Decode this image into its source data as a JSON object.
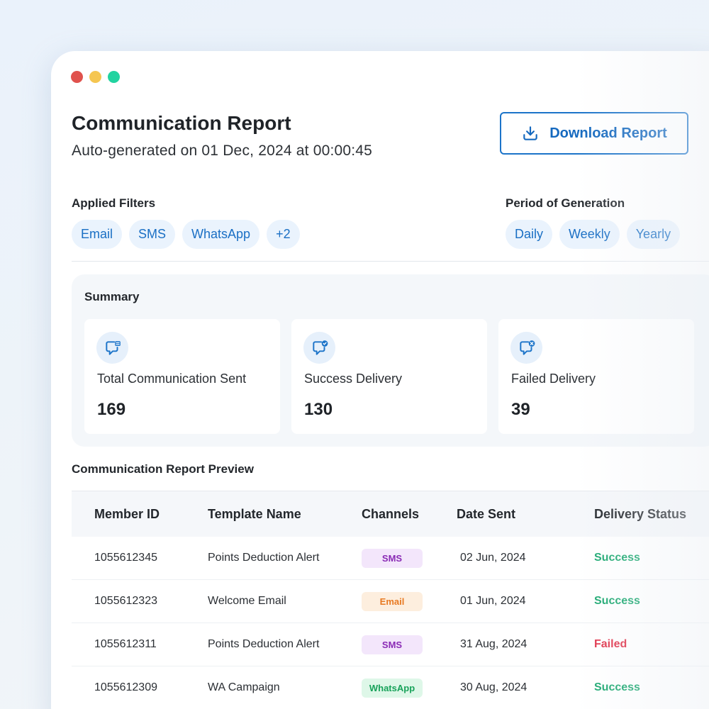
{
  "header": {
    "title": "Communication Report",
    "subtitle": "Auto-generated on 01 Dec, 2024 at 00:00:45",
    "download_label": "Download Report"
  },
  "filters": {
    "label": "Applied Filters",
    "chips": [
      "Email",
      "SMS",
      "WhatsApp",
      "+2"
    ]
  },
  "period": {
    "label": "Period of Generation",
    "chips": [
      "Daily",
      "Weekly",
      "Yearly"
    ]
  },
  "summary": {
    "title": "Summary",
    "cards": [
      {
        "label": "Total Communication Sent",
        "value": "169",
        "icon": "message-list-icon"
      },
      {
        "label": "Success Delivery",
        "value": "130",
        "icon": "message-check-icon"
      },
      {
        "label": "Failed Delivery",
        "value": "39",
        "icon": "message-x-icon"
      }
    ]
  },
  "preview": {
    "title": "Communication Report Preview",
    "columns": [
      "Member ID",
      "Template Name",
      "Channels",
      "Date Sent",
      "Delivery Status"
    ],
    "rows": [
      {
        "member_id": "1055612345",
        "template": "Points Deduction Alert",
        "channel": "SMS",
        "date": "02 Jun, 2024",
        "status": "Success"
      },
      {
        "member_id": "1055612323",
        "template": "Welcome Email",
        "channel": "Email",
        "date": "01 Jun, 2024",
        "status": "Success"
      },
      {
        "member_id": "1055612311",
        "template": "Points Deduction Alert",
        "channel": "SMS",
        "date": "31 Aug, 2024",
        "status": "Failed"
      },
      {
        "member_id": "1055612309",
        "template": "WA Campaign",
        "channel": "WhatsApp",
        "date": "30 Aug, 2024",
        "status": "Success"
      }
    ]
  },
  "colors": {
    "accent": "#1c74c9",
    "success": "#1ba870",
    "failed": "#e0334a"
  }
}
